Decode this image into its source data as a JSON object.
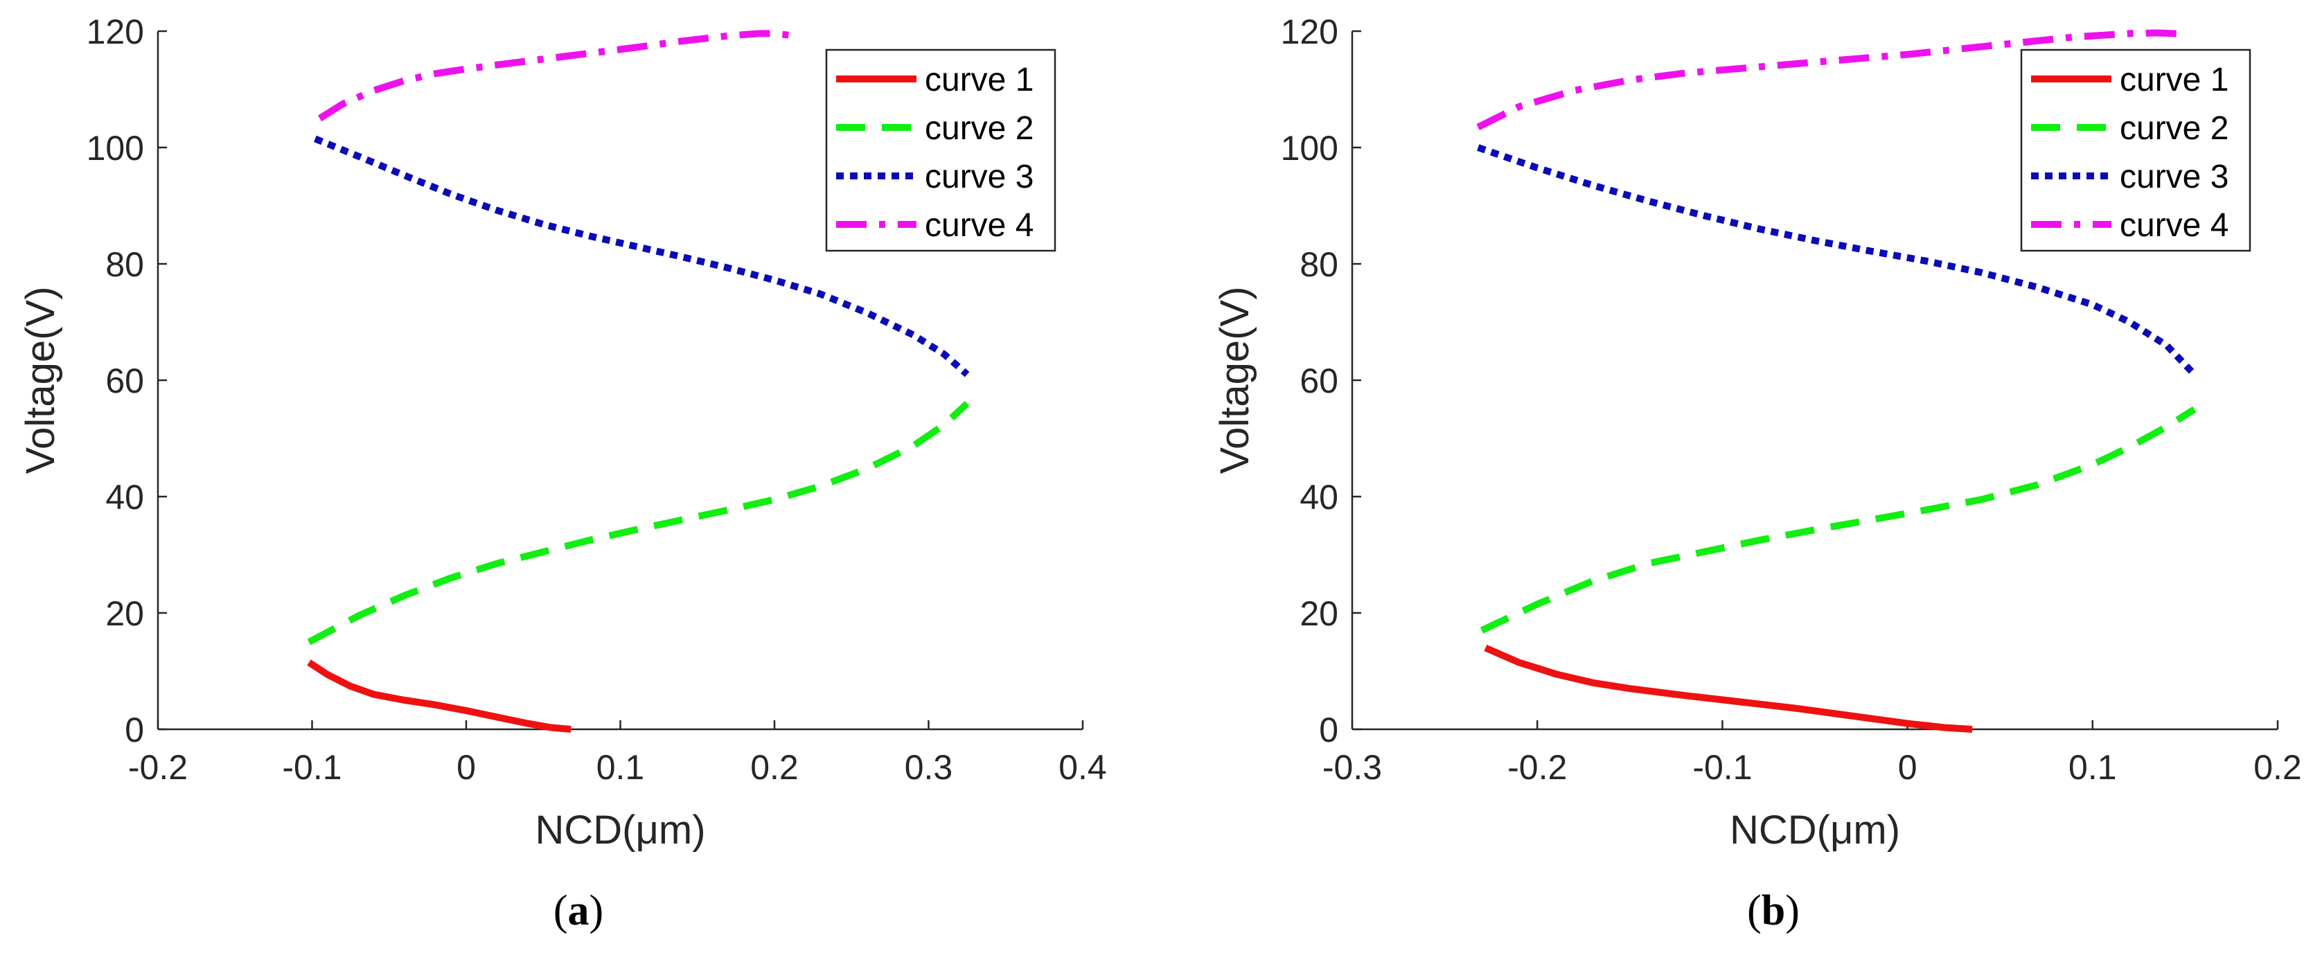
{
  "colors": {
    "curve1": "#ee1111",
    "curve2": "#11ee11",
    "curve3": "#0a0ab8",
    "curve4": "#ee11ee",
    "axis": "#262626",
    "text": "#262626"
  },
  "chart_data": [
    {
      "type": "line",
      "panel_label": "a",
      "xlabel": "NCD(μm)",
      "ylabel": "Voltage(V)",
      "xlim": [
        -0.2,
        0.4
      ],
      "ylim": [
        0,
        120
      ],
      "xticks": [
        -0.2,
        -0.1,
        0,
        0.1,
        0.2,
        0.3,
        0.4
      ],
      "xtick_labels": [
        "-0.2",
        "-0.1",
        "0",
        "0.1",
        "0.2",
        "0.3",
        "0.4"
      ],
      "yticks": [
        0,
        20,
        40,
        60,
        80,
        100,
        120
      ],
      "ytick_labels": [
        "0",
        "20",
        "40",
        "60",
        "80",
        "100",
        "120"
      ],
      "legend_position": "top-right",
      "series": [
        {
          "name": "curve 1",
          "style": "solid",
          "color": "#ee1111",
          "x": [
            -0.102,
            -0.09,
            -0.075,
            -0.06,
            -0.04,
            -0.02,
            0.0,
            0.02,
            0.04,
            0.055,
            0.068
          ],
          "y": [
            11.5,
            9.4,
            7.4,
            6.0,
            5.0,
            4.2,
            3.2,
            2.1,
            1.0,
            0.3,
            0.0
          ]
        },
        {
          "name": "curve 2",
          "style": "dashed",
          "color": "#11ee11",
          "x": [
            -0.102,
            -0.07,
            -0.04,
            -0.01,
            0.02,
            0.05,
            0.08,
            0.11,
            0.14,
            0.17,
            0.2,
            0.23,
            0.26,
            0.29,
            0.31,
            0.325
          ],
          "y": [
            15.0,
            19.5,
            23.0,
            26.0,
            28.5,
            30.5,
            32.5,
            34.3,
            36.0,
            37.7,
            39.5,
            41.8,
            44.8,
            48.7,
            52.3,
            56.0
          ]
        },
        {
          "name": "curve 3",
          "style": "dotted",
          "color": "#0a0ab8",
          "x": [
            -0.098,
            -0.07,
            -0.04,
            -0.01,
            0.02,
            0.05,
            0.08,
            0.11,
            0.14,
            0.17,
            0.2,
            0.23,
            0.26,
            0.29,
            0.31,
            0.325
          ],
          "y": [
            101.5,
            98.5,
            95.2,
            92.0,
            89.2,
            86.8,
            84.8,
            83.0,
            81.2,
            79.3,
            77.2,
            74.8,
            71.6,
            67.8,
            64.5,
            61.0
          ]
        },
        {
          "name": "curve 4",
          "style": "dashdot",
          "color": "#ee11ee",
          "x": [
            -0.095,
            -0.08,
            -0.06,
            -0.04,
            -0.02,
            0.0,
            0.02,
            0.05,
            0.08,
            0.11,
            0.14,
            0.17,
            0.19,
            0.2,
            0.21
          ],
          "y": [
            105.0,
            107.5,
            109.8,
            111.5,
            112.7,
            113.5,
            114.2,
            115.2,
            116.2,
            117.2,
            118.3,
            119.2,
            119.6,
            119.6,
            119.3
          ]
        }
      ]
    },
    {
      "type": "line",
      "panel_label": "b",
      "xlabel": "NCD(μm)",
      "ylabel": "Voltage(V)",
      "xlim": [
        -0.3,
        0.2
      ],
      "ylim": [
        0,
        120
      ],
      "xticks": [
        -0.3,
        -0.2,
        -0.1,
        0,
        0.1,
        0.2
      ],
      "xtick_labels": [
        "-0.3",
        "-0.2",
        "-0.1",
        "0",
        "0.1",
        "0.2"
      ],
      "yticks": [
        0,
        20,
        40,
        60,
        80,
        100,
        120
      ],
      "ytick_labels": [
        "0",
        "20",
        "40",
        "60",
        "80",
        "100",
        "120"
      ],
      "legend_position": "top-right",
      "series": [
        {
          "name": "curve 1",
          "style": "solid",
          "color": "#ee1111",
          "x": [
            -0.228,
            -0.21,
            -0.19,
            -0.17,
            -0.15,
            -0.12,
            -0.09,
            -0.06,
            -0.03,
            0.0,
            0.02,
            0.035
          ],
          "y": [
            14.0,
            11.5,
            9.5,
            8.0,
            7.0,
            5.8,
            4.7,
            3.6,
            2.3,
            1.0,
            0.3,
            0.0
          ]
        },
        {
          "name": "curve 2",
          "style": "dashed",
          "color": "#11ee11",
          "x": [
            -0.23,
            -0.2,
            -0.17,
            -0.14,
            -0.11,
            -0.08,
            -0.05,
            -0.02,
            0.01,
            0.04,
            0.07,
            0.1,
            0.12,
            0.14,
            0.155
          ],
          "y": [
            17.0,
            21.5,
            25.5,
            28.5,
            30.5,
            32.5,
            34.3,
            36.0,
            37.7,
            39.5,
            42.0,
            45.5,
            48.5,
            52.0,
            55.0
          ]
        },
        {
          "name": "curve 3",
          "style": "dotted",
          "color": "#0a0ab8",
          "x": [
            -0.232,
            -0.2,
            -0.17,
            -0.14,
            -0.11,
            -0.08,
            -0.05,
            -0.02,
            0.01,
            0.04,
            0.07,
            0.1,
            0.12,
            0.14,
            0.155
          ],
          "y": [
            100.0,
            96.5,
            93.5,
            90.8,
            88.3,
            86.0,
            84.0,
            82.2,
            80.5,
            78.5,
            76.0,
            73.0,
            70.0,
            66.0,
            61.0
          ]
        },
        {
          "name": "curve 4",
          "style": "dashdot",
          "color": "#ee11ee",
          "x": [
            -0.232,
            -0.21,
            -0.18,
            -0.15,
            -0.12,
            -0.09,
            -0.06,
            -0.03,
            0.0,
            0.03,
            0.06,
            0.09,
            0.12,
            0.135,
            0.15
          ],
          "y": [
            103.5,
            107.0,
            109.8,
            111.6,
            112.8,
            113.6,
            114.4,
            115.2,
            116.0,
            117.0,
            118.0,
            119.0,
            119.6,
            119.7,
            119.5
          ]
        }
      ]
    }
  ]
}
